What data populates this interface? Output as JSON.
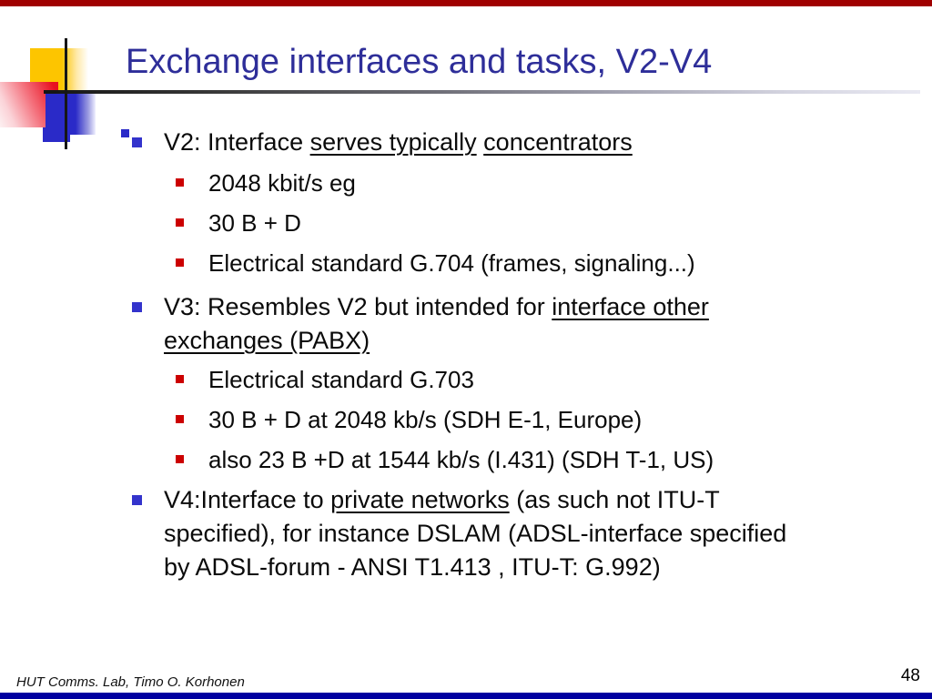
{
  "slide": {
    "title": "Exchange interfaces and tasks, V2-V4",
    "footer_credit": "HUT Comms. Lab, Timo O. Korhonen",
    "page_number": "48"
  },
  "content": {
    "bullets": [
      {
        "level": 1,
        "lines": [
          [
            {
              "t": "V2: Interface ",
              "u": false
            },
            {
              "t": "serves typically",
              "u": true
            },
            {
              "t": " ",
              "u": false
            },
            {
              "t": "concentrators",
              "u": true
            }
          ]
        ]
      },
      {
        "level": 2,
        "lines": [
          [
            {
              "t": "2048 kbit/s eg",
              "u": false
            }
          ]
        ]
      },
      {
        "level": 2,
        "lines": [
          [
            {
              "t": "30 B + D",
              "u": false
            }
          ]
        ]
      },
      {
        "level": 2,
        "lines": [
          [
            {
              "t": "Electrical standard G.704 (frames, signaling...)",
              "u": false
            }
          ]
        ]
      },
      {
        "level": 1,
        "lines": [
          [
            {
              "t": "V3: Resembles V2 but intended for ",
              "u": false
            },
            {
              "t": "interface other",
              "u": true
            }
          ],
          [
            {
              "t": "exchanges (PABX)",
              "u": true
            }
          ]
        ]
      },
      {
        "level": 2,
        "lines": [
          [
            {
              "t": "Electrical standard G.703",
              "u": false
            }
          ]
        ]
      },
      {
        "level": 2,
        "lines": [
          [
            {
              "t": "30 B + D at 2048 kb/s (SDH E-1, Europe)",
              "u": false
            }
          ]
        ]
      },
      {
        "level": 2,
        "lines": [
          [
            {
              "t": "also 23 B +D at 1544 kb/s (I.431) (SDH T-1, US)",
              "u": false
            }
          ]
        ]
      },
      {
        "level": 1,
        "lines": [
          [
            {
              "t": "V4:Interface to ",
              "u": false
            },
            {
              "t": "private networks",
              "u": true
            },
            {
              "t": " (as such not ITU-T",
              "u": false
            }
          ],
          [
            {
              "t": "specified), for instance DSLAM (ADSL-interface specified",
              "u": false
            }
          ],
          [
            {
              "t": "by ADSL-forum - ANSI T1.413 , ITU-T: G.992)",
              "u": false
            }
          ]
        ]
      }
    ]
  },
  "colors": {
    "title_text": "#2e2e99",
    "top_accent_bar": "#a00000",
    "bottom_accent_bar": "#0000a0",
    "level1_bullet": "#3333cc",
    "level2_bullet": "#cc0000",
    "deco_yellow": "#fdc500",
    "deco_red": "#e8101f",
    "deco_blue": "#2a2ac8"
  }
}
